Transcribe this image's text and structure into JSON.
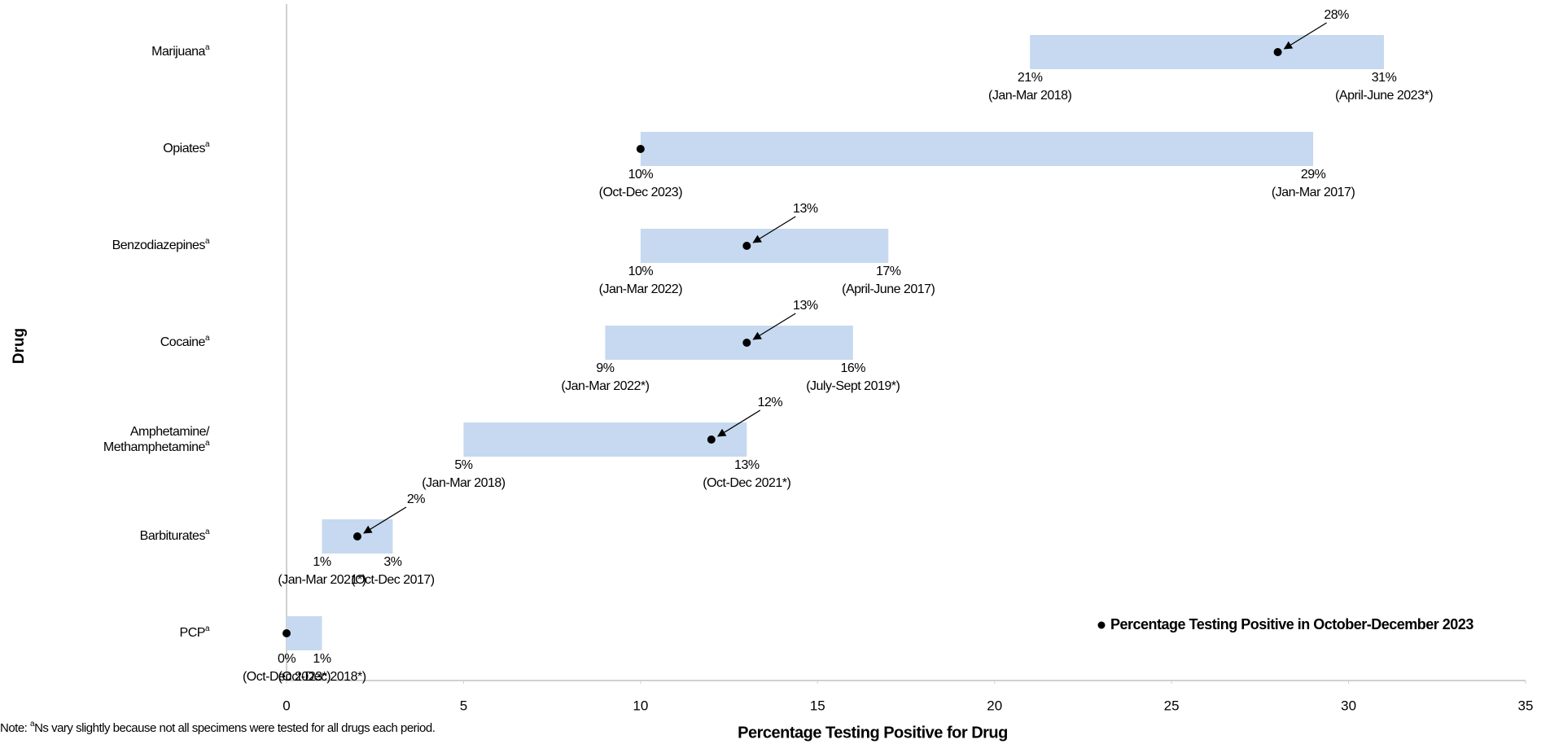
{
  "chart_data": {
    "type": "range",
    "y_axis_title": "Drug",
    "x_axis_title": "Percentage Testing Positive for Drug",
    "category_marker": "a",
    "categories": [
      "Marijuana",
      "Opiates",
      "Benzodiazepines",
      "Cocaine",
      "Amphetamine/\nMethamphetamine",
      "Barbiturates",
      "PCP"
    ],
    "bar_color": "#c6d9f0",
    "min": {
      "values": [
        21,
        10,
        10,
        9,
        5,
        1,
        0
      ],
      "value_labels": [
        "21%",
        "10%",
        "10%",
        "9%",
        "5%",
        "1%",
        "0%"
      ],
      "periods": [
        "(Jan-Mar 2018)",
        "(Oct-Dec 2023)",
        "(Jan-Mar 2022)",
        "(Jan-Mar 2022*)",
        "(Jan-Mar 2018)",
        "(Jan-Mar 2021*)",
        "(Oct-Dec 2023*)"
      ]
    },
    "max": {
      "values": [
        31,
        29,
        17,
        16,
        13,
        3,
        1
      ],
      "value_labels": [
        "31%",
        "29%",
        "17%",
        "16%",
        "13%",
        "3%",
        "1%"
      ],
      "periods": [
        "(April-June 2023*)",
        "(Jan-Mar 2017)",
        "(April-June 2017)",
        "(July-Sept 2019*)",
        "(Oct-Dec 2021*)",
        "(Oct-Dec 2017)",
        "(Oct-Dec 2018*)"
      ]
    },
    "current": {
      "name": "Percentage Testing Positive in October-December 2023",
      "color": "#000000",
      "values": [
        28,
        10,
        13,
        13,
        12,
        2,
        0
      ],
      "value_labels": [
        "28%",
        null,
        "13%",
        "13%",
        "12%",
        "2%",
        null
      ]
    },
    "xlim": [
      0,
      35
    ],
    "xticks": [
      0,
      5,
      10,
      15,
      20,
      25,
      30,
      35
    ],
    "legend_position": "lower right",
    "note": "Note: ",
    "note_marker": "a",
    "note_text": "Ns vary slightly because not all specimens were tested for all drugs each period."
  }
}
